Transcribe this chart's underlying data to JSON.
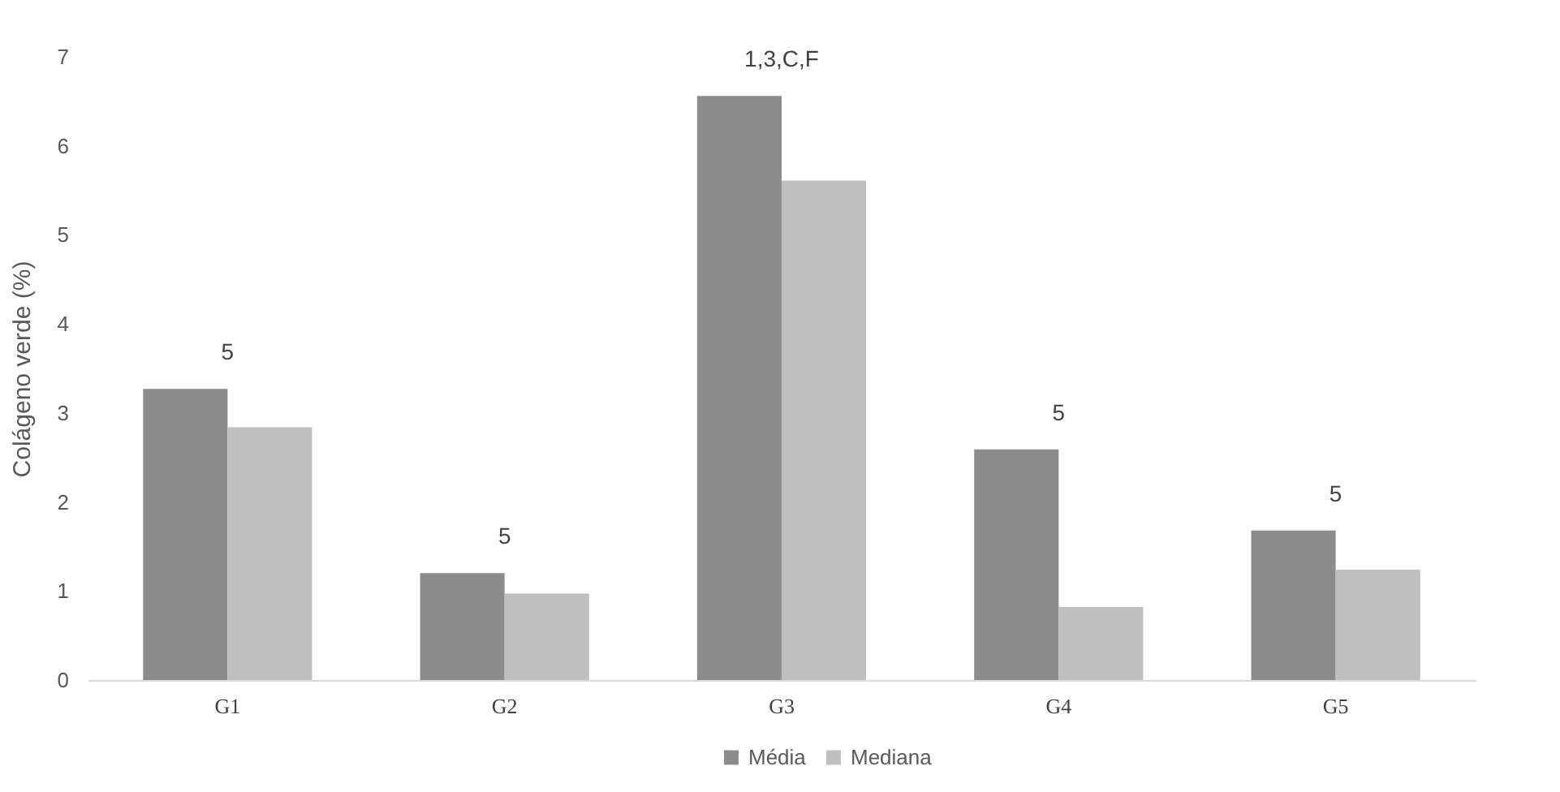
{
  "chart_data": {
    "type": "bar",
    "ylabel": "Colágeno verde (%)",
    "categories": [
      "G1",
      "G2",
      "G3",
      "G4",
      "G5"
    ],
    "series": [
      {
        "name": "Média",
        "color": "#8c8c8c",
        "values": [
          3.27,
          1.2,
          6.56,
          2.59,
          1.68
        ]
      },
      {
        "name": "Mediana",
        "color": "#bfbfbf",
        "values": [
          2.84,
          0.97,
          5.61,
          0.82,
          1.24
        ]
      }
    ],
    "ylim": [
      0,
      7
    ],
    "yticks": [
      0,
      1,
      2,
      3,
      4,
      5,
      6,
      7
    ],
    "grid": false,
    "legend": "bottom",
    "annotations": [
      {
        "text": "5",
        "x": "G1",
        "y": 3.27
      },
      {
        "text": "5",
        "x": "G2",
        "y": 1.2
      },
      {
        "text": "1,3,C,F",
        "x": "G3",
        "y": 6.56
      },
      {
        "text": "5",
        "x": "G4",
        "y": 2.59
      },
      {
        "text": "5",
        "x": "G5",
        "y": 1.68
      }
    ]
  }
}
